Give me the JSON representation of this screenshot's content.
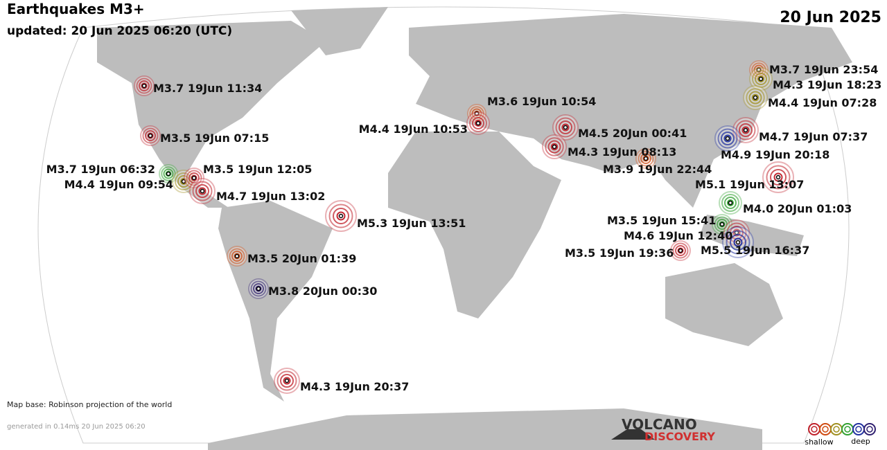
{
  "header": {
    "title": "Earthquakes M3+",
    "updated": "updated: 20 Jun 2025 06:20 (UTC)",
    "date": "20 Jun 2025"
  },
  "quakes": [
    {
      "label": "M3.7 19Jun 11:34",
      "color": "#c0202a"
    },
    {
      "label": "M3.5 19Jun 07:15",
      "color": "#c0202a"
    },
    {
      "label": "M3.7 19Jun 06:32",
      "color": "#30a030"
    },
    {
      "label": "M4.4 19Jun 09:54",
      "color": "#a09020"
    },
    {
      "label": "M3.5 19Jun 12:05",
      "color": "#c0202a"
    },
    {
      "label": "M4.7 19Jun 13:02",
      "color": "#c0202a"
    },
    {
      "label": "M5.3 19Jun 13:51",
      "color": "#c0202a"
    },
    {
      "label": "M3.5 20Jun 01:39",
      "color": "#d04a10"
    },
    {
      "label": "M3.8 20Jun 00:30",
      "color": "#302070"
    },
    {
      "label": "M4.3 19Jun 20:37",
      "color": "#c0202a"
    },
    {
      "label": "M3.6 19Jun 10:54",
      "color": "#d04a10"
    },
    {
      "label": "M4.4 19Jun 10:53",
      "color": "#c0202a"
    },
    {
      "label": "M4.5 20Jun 00:41",
      "color": "#c0202a"
    },
    {
      "label": "M4.3 19Jun 08:13",
      "color": "#c0202a"
    },
    {
      "label": "M3.9 19Jun 22:44",
      "color": "#d04a10"
    },
    {
      "label": "M3.7 19Jun 23:54",
      "color": "#d04a10"
    },
    {
      "label": "M4.3 19Jun 18:23",
      "color": "#a09020"
    },
    {
      "label": "M4.4 19Jun 07:28",
      "color": "#a09020"
    },
    {
      "label": "M4.7 19Jun 07:37",
      "color": "#c0202a"
    },
    {
      "label": "M4.9 19Jun 20:18",
      "color": "#2030a0"
    },
    {
      "label": "M5.1 19Jun 13:07",
      "color": "#c0202a"
    },
    {
      "label": "M4.0 20Jun 01:03",
      "color": "#30a030"
    },
    {
      "label": "M3.5 19Jun 15:41",
      "color": "#30a030"
    },
    {
      "label": "M4.6 19Jun 12:40",
      "color": "#c0202a"
    },
    {
      "label": "M5.5 19Jun 16:37",
      "color": "#2030a0"
    },
    {
      "label": "M3.5 19Jun 19:36",
      "color": "#c0202a"
    }
  ],
  "footer": {
    "map_base": "Map base: Robinson projection of the world",
    "generated": "generated in 0.14ms 20 Jun 2025 06:20"
  },
  "logo": {
    "line1": "VOLCANO",
    "line2": "DISCOVERY"
  },
  "legend": {
    "shallow": "shallow",
    "deep": "deep"
  }
}
